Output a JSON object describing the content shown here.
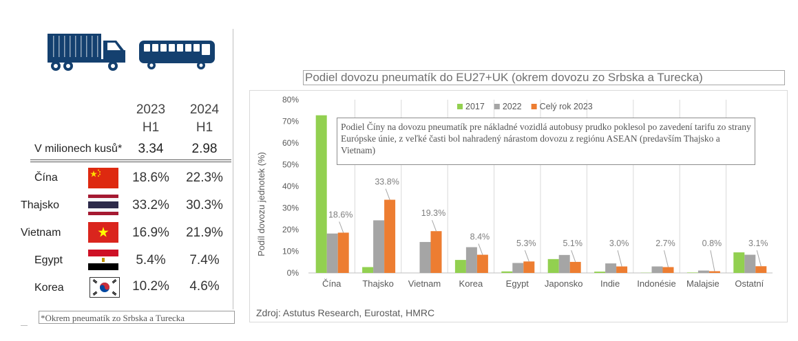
{
  "icons": {
    "truck": "truck-icon",
    "bus": "bus-icon",
    "icon_color": "#14406f"
  },
  "table": {
    "year1_line1": "2023",
    "year1_line2": "H1",
    "year2_line1": "2024",
    "year2_line2": "H1",
    "unit_label": "V milionech kusů*",
    "unit_values": [
      "3.34",
      "2.98"
    ],
    "rows": [
      {
        "country": "Čína",
        "v2023": "18.6%",
        "v2024": "22.3%",
        "flag": "china-flag-icon"
      },
      {
        "country": "Thajsko",
        "v2023": "33.2%",
        "v2024": "30.3%",
        "flag": "thailand-flag-icon"
      },
      {
        "country": "Vietnam",
        "v2023": "16.9%",
        "v2024": "21.9%",
        "flag": "vietnam-flag-icon"
      },
      {
        "country": "Egypt",
        "v2023": "5.4%",
        "v2024": "7.4%",
        "flag": "egypt-flag-icon"
      },
      {
        "country": "Korea",
        "v2023": "10.2%",
        "v2024": "4.6%",
        "flag": "korea-flag-icon"
      }
    ],
    "footnote": "*Okrem pneumatík zo Srbska a Turecka"
  },
  "chart_data": {
    "type": "bar",
    "title": "Podiel dovozu pneumatík do EU27+UK (okrem dovozu zo Srbska a Turecka)",
    "ylabel": "Podíl dovozu jednotek (%)",
    "xlabel": "",
    "ylim": [
      0,
      80
    ],
    "yticks": [
      0,
      10,
      20,
      30,
      40,
      50,
      60,
      70,
      80
    ],
    "ytick_labels": [
      "0%",
      "10%",
      "20%",
      "30%",
      "40%",
      "50%",
      "60%",
      "70%",
      "80%"
    ],
    "grid": "vertical separators between categories",
    "legend_position": "top-center",
    "categories": [
      "Čína",
      "Thajsko",
      "Vietnam",
      "Korea",
      "Egypt",
      "Japonsko",
      "Indie",
      "Indonésie",
      "Malajsie",
      "Ostatní"
    ],
    "series": [
      {
        "name": "2017",
        "color": "#92d050",
        "values": [
          72.8,
          2.7,
          0.0,
          6.0,
          0.7,
          6.4,
          0.6,
          0.1,
          0.2,
          9.5
        ]
      },
      {
        "name": "2022",
        "color": "#a5a5a5",
        "values": [
          18.2,
          24.3,
          14.3,
          11.9,
          4.6,
          8.3,
          4.4,
          3.0,
          1.1,
          8.4
        ]
      },
      {
        "name": "Celý rok 2023",
        "color": "#ed7d31",
        "values": [
          18.6,
          33.8,
          19.3,
          8.4,
          5.3,
          5.1,
          3.0,
          2.7,
          0.8,
          3.1
        ]
      }
    ],
    "data_labels": [
      "18.6%",
      "33.8%",
      "19.3%",
      "8.4%",
      "5.3%",
      "5.1%",
      "3.0%",
      "2.7%",
      "0.8%",
      "3.1%"
    ],
    "annotation": "Podiel Číny na dovozu pneumatík pre nákladné vozidlá autobusy prudko poklesol po zavedení tarifu zo strany Európske únie, z veľké časti bol nahradený nárastom dovozu z regiónu ASEAN (predavším Thajsko a Vietnam)",
    "source": "Zdroj: Astutus Research, Eurostat, HMRC"
  }
}
